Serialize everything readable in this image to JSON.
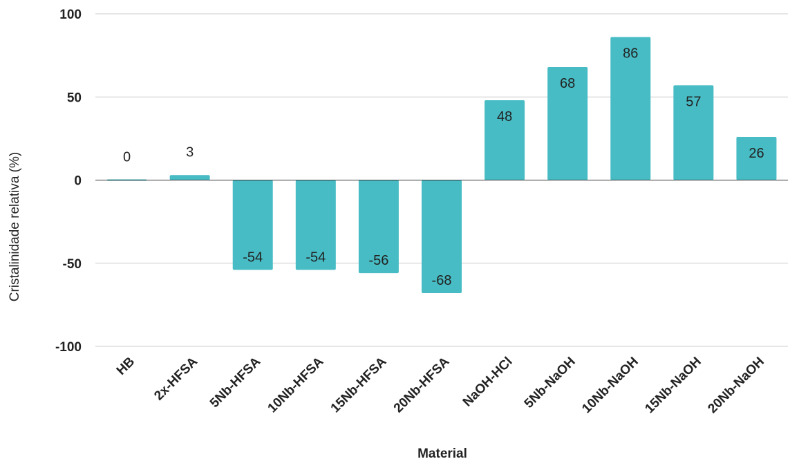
{
  "chart_data": {
    "type": "bar",
    "categories": [
      "HB",
      "2x-HFSA",
      "5Nb-HFSA",
      "10Nb-HFSA",
      "15Nb-HFSA",
      "20Nb-HFSA",
      "NaOH-HCl",
      "5Nb-NaOH",
      "10Nb-NaOH",
      "15Nb-NaOH",
      "20Nb-NaOH"
    ],
    "values": [
      0,
      3,
      -54,
      -54,
      -56,
      -68,
      48,
      68,
      86,
      57,
      26
    ],
    "title": "",
    "xlabel": "Material",
    "ylabel": "Cristalinidade relativa (%)",
    "ylim": [
      -100,
      100
    ],
    "yticks": [
      100,
      50,
      0,
      -50,
      -100
    ],
    "grid": true,
    "legend": "none",
    "bar_color": "#47BCC4"
  }
}
